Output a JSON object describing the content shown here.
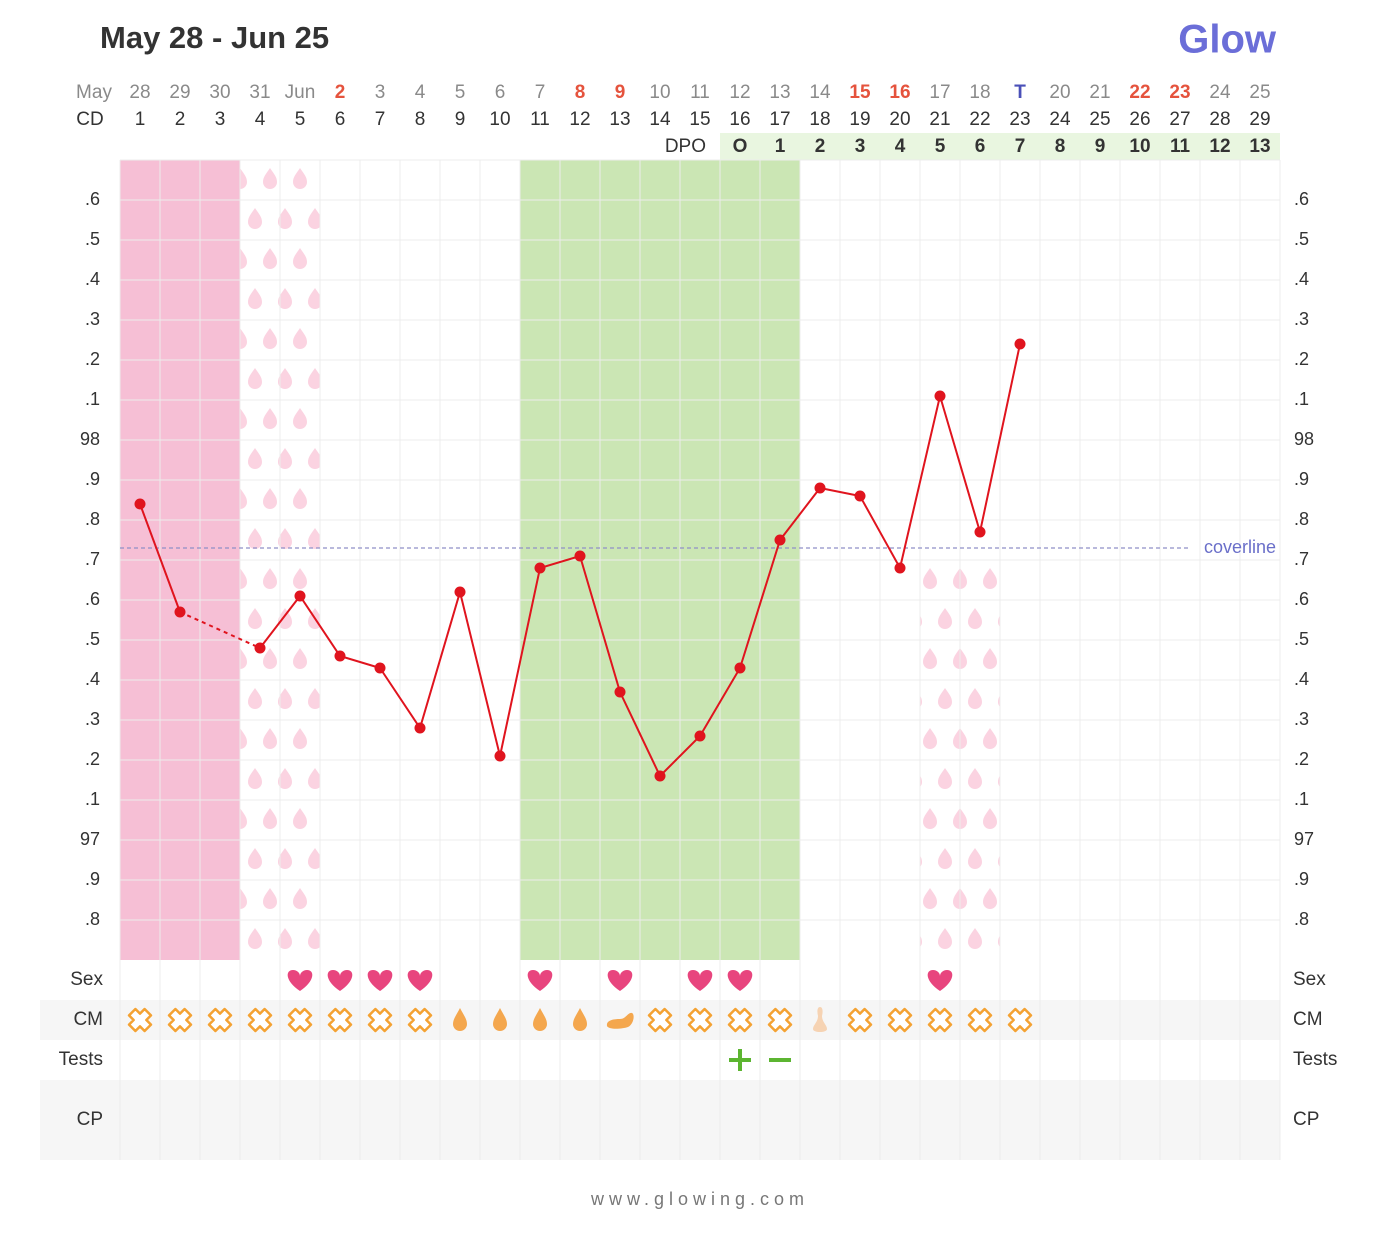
{
  "chart_data": {
    "type": "line",
    "title": "May 28 - Jun 25",
    "logo": "Glow",
    "footer": "www.glowing.com",
    "date_header": "May",
    "dates": [
      "28",
      "29",
      "30",
      "31",
      "Jun",
      "2",
      "3",
      "4",
      "5",
      "6",
      "7",
      "8",
      "9",
      "10",
      "11",
      "12",
      "13",
      "14",
      "15",
      "16",
      "17",
      "18",
      "T",
      "20",
      "21",
      "22",
      "23",
      "24",
      "25"
    ],
    "date_colors": [
      "#8a8a8a",
      "#8a8a8a",
      "#8a8a8a",
      "#8a8a8a",
      "#8a8a8a",
      "#e5533d",
      "#8a8a8a",
      "#8a8a8a",
      "#8a8a8a",
      "#8a8a8a",
      "#8a8a8a",
      "#e5533d",
      "#e5533d",
      "#8a8a8a",
      "#8a8a8a",
      "#8a8a8a",
      "#8a8a8a",
      "#8a8a8a",
      "#e5533d",
      "#e5533d",
      "#8a8a8a",
      "#8a8a8a",
      "#4a50b8",
      "#8a8a8a",
      "#8a8a8a",
      "#e5533d",
      "#e5533d",
      "#8a8a8a",
      "#8a8a8a"
    ],
    "cd_header": "CD",
    "cd": [
      1,
      2,
      3,
      4,
      5,
      6,
      7,
      8,
      9,
      10,
      11,
      12,
      13,
      14,
      15,
      16,
      17,
      18,
      19,
      20,
      21,
      22,
      23,
      24,
      25,
      26,
      27,
      28,
      29
    ],
    "dpo_header": "DPO",
    "dpo_start_cd": 16,
    "dpo": [
      "O",
      1,
      2,
      3,
      4,
      5,
      6,
      7,
      8,
      9,
      10,
      11,
      12,
      13
    ],
    "ylim": [
      96.7,
      98.7
    ],
    "yticks": [
      {
        "value": 96.8,
        "label": ".8"
      },
      {
        "value": 96.9,
        "label": ".9"
      },
      97,
      {
        "value": 97.1,
        "label": ".1"
      },
      {
        "value": 97.2,
        "label": ".2"
      },
      {
        "value": 97.3,
        "label": ".3"
      },
      {
        "value": 97.4,
        "label": ".4"
      },
      {
        "value": 97.5,
        "label": ".5"
      },
      {
        "value": 97.6,
        "label": ".6"
      },
      {
        "value": 97.7,
        "label": ".7"
      },
      {
        "value": 97.8,
        "label": ".8"
      },
      {
        "value": 97.9,
        "label": ".9"
      },
      98,
      {
        "value": 98.1,
        "label": ".1"
      },
      {
        "value": 98.2,
        "label": ".2"
      },
      {
        "value": 98.3,
        "label": ".3"
      },
      {
        "value": 98.4,
        "label": ".4"
      },
      {
        "value": 98.5,
        "label": ".5"
      },
      {
        "value": 98.6,
        "label": ".6"
      }
    ],
    "grid": true,
    "color": "#e0141e",
    "values": [
      97.84,
      97.57,
      null,
      97.48,
      97.61,
      97.46,
      97.43,
      97.28,
      97.62,
      97.21,
      97.68,
      97.71,
      97.37,
      97.16,
      97.26,
      97.43,
      97.75,
      97.88,
      97.86,
      97.68,
      98.11,
      97.77,
      98.24,
      null,
      null,
      null,
      null,
      null,
      null
    ],
    "coverline": 97.73,
    "coverline_label": "coverline",
    "period_cd": [
      1,
      3
    ],
    "fertile_cd": [
      11,
      17
    ],
    "spotting_cd": [
      [
        4,
        5
      ],
      [
        21,
        22
      ]
    ],
    "rows": [
      "Sex",
      "CM",
      "Tests",
      "CP"
    ],
    "sex_cd": [
      5,
      6,
      7,
      8,
      11,
      13,
      15,
      16,
      21
    ],
    "cm": [
      "dry",
      "dry",
      "dry",
      "dry",
      "dry",
      "dry",
      "dry",
      "dry",
      "watery",
      "watery",
      "watery",
      "watery",
      "creamy",
      "dry",
      "dry",
      "dry",
      "dry",
      "eggwhite",
      "dry",
      "dry",
      "dry",
      "dry",
      "dry"
    ],
    "tests": [
      {
        "cd": 16,
        "result": "positive"
      },
      {
        "cd": 17,
        "result": "negative"
      }
    ]
  }
}
